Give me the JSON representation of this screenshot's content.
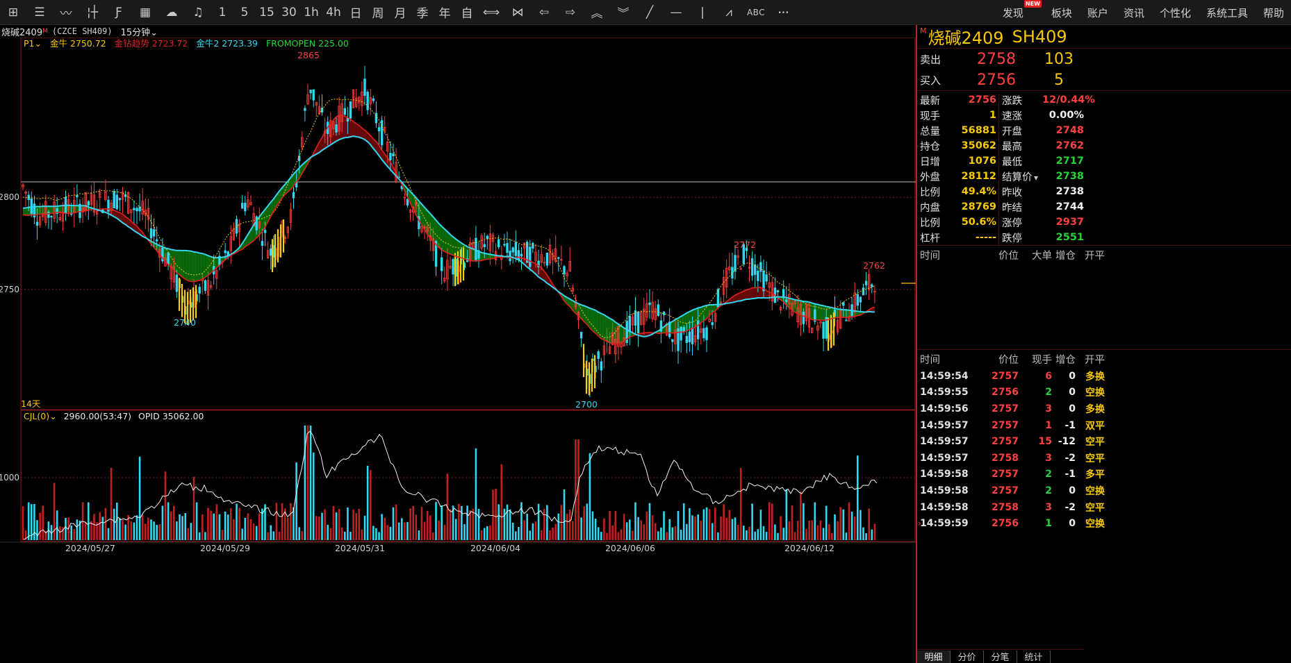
{
  "toolbar": {
    "tools": [
      {
        "name": "grid-icon",
        "glyph": "⊞"
      },
      {
        "name": "list-icon",
        "glyph": "☰"
      },
      {
        "name": "line-chart-icon",
        "glyph": "〰"
      },
      {
        "name": "candle-icon",
        "glyph": "¦┼"
      },
      {
        "name": "fx-icon",
        "glyph": "Ƒ"
      },
      {
        "name": "calendar-chart-icon",
        "glyph": "▦"
      },
      {
        "name": "flash-icon",
        "glyph": "☁"
      },
      {
        "name": "bell-icon",
        "glyph": "♫"
      },
      {
        "name": "period-1",
        "text": "1"
      },
      {
        "name": "period-5",
        "text": "5"
      },
      {
        "name": "period-15",
        "text": "15"
      },
      {
        "name": "period-30",
        "text": "30"
      },
      {
        "name": "period-1h",
        "text": "1h"
      },
      {
        "name": "period-4h",
        "text": "4h"
      },
      {
        "name": "period-day",
        "text": "日"
      },
      {
        "name": "period-week",
        "text": "周"
      },
      {
        "name": "period-month",
        "text": "月"
      },
      {
        "name": "period-season",
        "text": "季"
      },
      {
        "name": "period-year",
        "text": "年"
      },
      {
        "name": "period-custom",
        "text": "自"
      },
      {
        "name": "expand-icon",
        "glyph": "⟺"
      },
      {
        "name": "shrink-icon",
        "glyph": "⋈"
      },
      {
        "name": "arrow-left-icon",
        "glyph": "⇦"
      },
      {
        "name": "arrow-right-icon",
        "glyph": "⇨"
      },
      {
        "name": "double-up-icon",
        "glyph": "︽"
      },
      {
        "name": "double-down-icon",
        "glyph": "︾"
      },
      {
        "name": "draw-line-icon",
        "glyph": "╱"
      },
      {
        "name": "horizontal-line-icon",
        "glyph": "—"
      },
      {
        "name": "vertical-line-icon",
        "glyph": "|"
      },
      {
        "name": "wave-icon",
        "glyph": "⩘"
      },
      {
        "name": "abc-icon",
        "text": "ABC"
      },
      {
        "name": "more-icon",
        "glyph": "···"
      }
    ],
    "menu": [
      "发现",
      "板块",
      "账户",
      "资讯",
      "个性化",
      "系统工具",
      "帮助"
    ],
    "new_badge": "NEW"
  },
  "chart_header": {
    "name": "烧碱2409",
    "mark": "M",
    "code": "(CZCE SH409)",
    "period": "15分钟"
  },
  "chart_data": {
    "type": "candlestick",
    "indicators_legend": [
      {
        "label": "P1",
        "value": "",
        "color": "#f6c800"
      },
      {
        "label": "金牛",
        "value": "2750.72",
        "color": "#f6c800"
      },
      {
        "label": "金钻趋势",
        "value": "2723.72",
        "color": "#e02020"
      },
      {
        "label": "金牛2",
        "value": "2723.39",
        "color": "#33d7f0"
      },
      {
        "label": "FROMOPEN",
        "value": "225.00",
        "color": "#22dd33"
      }
    ],
    "y_ticks": [
      2800,
      2750
    ],
    "ylim": [
      2693,
      2880
    ],
    "marked_values": {
      "high": "2865",
      "low1": "2740",
      "low2": "2700",
      "peak2": "2772",
      "peak3": "2762"
    },
    "period_label": "14天",
    "x_ticks": [
      "2024/05/27",
      "2024/05/29",
      "2024/05/31",
      "2024/06/04",
      "2024/06/06",
      "2024/06/12"
    ],
    "sub_chart": {
      "label": "CJL(0)",
      "value_text": "2960.00(53:47)",
      "opid_label": "OPID",
      "opid_value": "35062.00",
      "y_tick": "1000"
    },
    "colors": {
      "up": "#ff3b3b",
      "down": "#33d7f0",
      "ma_yellow": "#f6c800",
      "trend_red": "#e02020",
      "trend_cyan": "#33d7f0",
      "fill_green": "#0a6e0a",
      "fill_red": "#6e0a0a"
    }
  },
  "quote_panel": {
    "mark": "M",
    "name": "烧碱2409",
    "code": "SH409",
    "sell": {
      "label": "卖出",
      "price": "2758",
      "vol": "103"
    },
    "buy": {
      "label": "买入",
      "price": "2756",
      "vol": "5"
    },
    "stats": [
      {
        "l1": "最新",
        "v1": "2756",
        "c1": "red",
        "l2": "涨跌",
        "v2": "12/0.44%",
        "c2": "red"
      },
      {
        "l1": "现手",
        "v1": "1",
        "c1": "yellow",
        "l2": "速涨",
        "v2": "0.00%",
        "c2": "white"
      },
      {
        "l1": "总量",
        "v1": "56881",
        "c1": "yellow",
        "l2": "开盘",
        "v2": "2748",
        "c2": "red"
      },
      {
        "l1": "持仓",
        "v1": "35062",
        "c1": "yellow",
        "l2": "最高",
        "v2": "2762",
        "c2": "red"
      },
      {
        "l1": "日增",
        "v1": "1076",
        "c1": "yellow",
        "l2": "最低",
        "v2": "2717",
        "c2": "green"
      },
      {
        "l1": "外盘",
        "v1": "28112",
        "c1": "yellow",
        "l2": "结算价",
        "v2": "2738",
        "c2": "green"
      },
      {
        "l1": "比例",
        "v1": "49.4%",
        "c1": "yellow",
        "l2": "昨收",
        "v2": "2738",
        "c2": "white"
      },
      {
        "l1": "内盘",
        "v1": "28769",
        "c1": "yellow",
        "l2": "昨结",
        "v2": "2744",
        "c2": "white"
      },
      {
        "l1": "比例",
        "v1": "50.6%",
        "c1": "yellow",
        "l2": "涨停",
        "v2": "2937",
        "c2": "red"
      },
      {
        "l1": "杠杆",
        "v1": "-----",
        "c1": "yellow",
        "l2": "跌停",
        "v2": "2551",
        "c2": "green"
      }
    ],
    "big_orders_head": [
      "时间",
      "价位",
      "大单",
      "增仓",
      "开平"
    ],
    "trades_head": [
      "时间",
      "价位",
      "现手",
      "增仓",
      "开平"
    ],
    "trades": [
      {
        "time": "14:59:54",
        "price": "2757",
        "cur": "6",
        "cur_c": "red",
        "add": "0",
        "type": "多换",
        "type_c": "yellow"
      },
      {
        "time": "14:59:55",
        "price": "2756",
        "cur": "2",
        "cur_c": "green",
        "add": "0",
        "type": "空换",
        "type_c": "yellow"
      },
      {
        "time": "14:59:56",
        "price": "2757",
        "cur": "3",
        "cur_c": "red",
        "add": "0",
        "type": "多换",
        "type_c": "yellow"
      },
      {
        "time": "14:59:57",
        "price": "2757",
        "cur": "1",
        "cur_c": "red",
        "add": "-1",
        "type": "双平",
        "type_c": "yellow"
      },
      {
        "time": "14:59:57",
        "price": "2757",
        "cur": "15",
        "cur_c": "red",
        "add": "-12",
        "type": "空平",
        "type_c": "yellow"
      },
      {
        "time": "14:59:57",
        "price": "2758",
        "cur": "3",
        "cur_c": "red",
        "add": "-2",
        "type": "空平",
        "type_c": "yellow"
      },
      {
        "time": "14:59:58",
        "price": "2757",
        "cur": "2",
        "cur_c": "green",
        "add": "-1",
        "type": "多平",
        "type_c": "yellow"
      },
      {
        "time": "14:59:58",
        "price": "2757",
        "cur": "2",
        "cur_c": "green",
        "add": "0",
        "type": "空换",
        "type_c": "yellow"
      },
      {
        "time": "14:59:58",
        "price": "2758",
        "cur": "3",
        "cur_c": "red",
        "add": "-2",
        "type": "空平",
        "type_c": "yellow"
      },
      {
        "time": "14:59:59",
        "price": "2756",
        "cur": "1",
        "cur_c": "green",
        "add": "0",
        "type": "空换",
        "type_c": "yellow"
      }
    ],
    "tabs": [
      "明细",
      "分价",
      "分笔",
      "统计"
    ]
  }
}
